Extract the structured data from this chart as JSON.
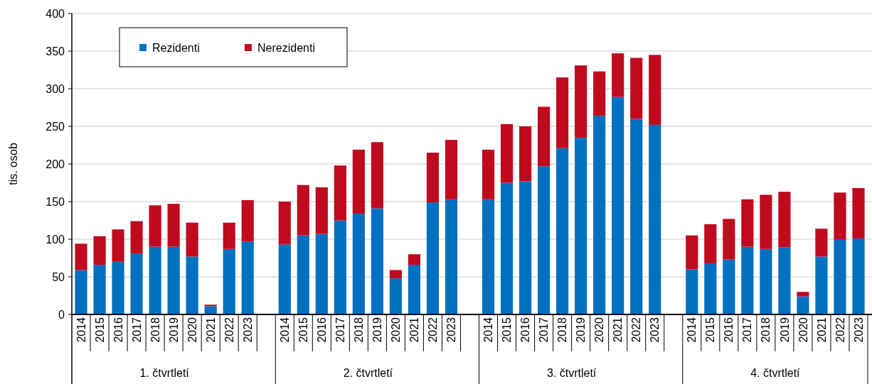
{
  "chart_data": {
    "type": "bar",
    "stacked": true,
    "ylabel": "tis. osob",
    "categories": [
      "2014",
      "2015",
      "2016",
      "2017",
      "2018",
      "2019",
      "2020",
      "2021",
      "2022",
      "2023",
      null,
      "2014",
      "2015",
      "2016",
      "2017",
      "2018",
      "2019",
      "2020",
      "2021",
      "2022",
      "2023",
      null,
      "2014",
      "2015",
      "2016",
      "2017",
      "2018",
      "2019",
      "2020",
      "2021",
      "2022",
      "2023",
      null,
      "2014",
      "2015",
      "2016",
      "2017",
      "2018",
      "2019",
      "2020",
      "2021",
      "2022",
      "2023"
    ],
    "series": [
      {
        "name": "Rezidenti",
        "color": "#0070c0",
        "values": [
          59,
          66,
          70,
          81,
          90,
          90,
          77,
          11,
          87,
          97,
          null,
          93,
          105,
          107,
          125,
          134,
          141,
          48,
          66,
          149,
          153,
          null,
          153,
          175,
          177,
          197,
          221,
          235,
          264,
          289,
          260,
          252,
          null,
          60,
          68,
          73,
          90,
          87,
          89,
          24,
          77,
          100,
          101
        ]
      },
      {
        "name": "Nerezidenti",
        "color": "#c00a1e",
        "values": [
          35,
          38,
          43,
          43,
          55,
          57,
          45,
          2,
          35,
          55,
          null,
          57,
          67,
          62,
          73,
          85,
          88,
          11,
          14,
          66,
          79,
          null,
          66,
          78,
          73,
          79,
          94,
          96,
          59,
          58,
          81,
          93,
          null,
          45,
          52,
          54,
          63,
          72,
          74,
          6,
          37,
          62,
          67
        ]
      }
    ],
    "ylim": [
      0,
      400
    ],
    "yticks": [
      0,
      50,
      100,
      150,
      200,
      250,
      300,
      350,
      400
    ],
    "grid": "y",
    "legend": "top left",
    "annotations": [
      "1. čtvrtletí",
      "2. čtvrtletí",
      "3. čtvrtletí",
      "4. čtvrtletí"
    ]
  }
}
